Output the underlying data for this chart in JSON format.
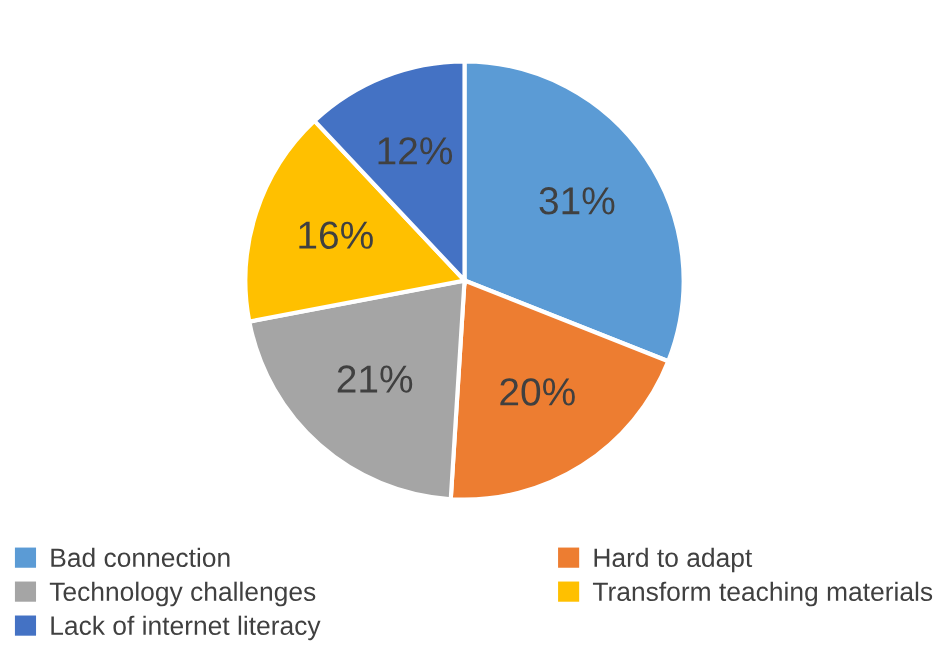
{
  "chart_data": {
    "type": "pie",
    "categories": [
      "Bad connection",
      "Hard to adapt",
      "Technology challenges",
      "Transform teaching materials",
      "Lack of internet literacy"
    ],
    "values": [
      31,
      20,
      21,
      16,
      12
    ],
    "colors": [
      "#5b9bd5",
      "#ed7d31",
      "#a5a5a5",
      "#ffc000",
      "#4472c4"
    ],
    "value_labels": [
      "31%",
      "20%",
      "21%",
      "16%",
      "12%"
    ],
    "legend": "bottom"
  }
}
